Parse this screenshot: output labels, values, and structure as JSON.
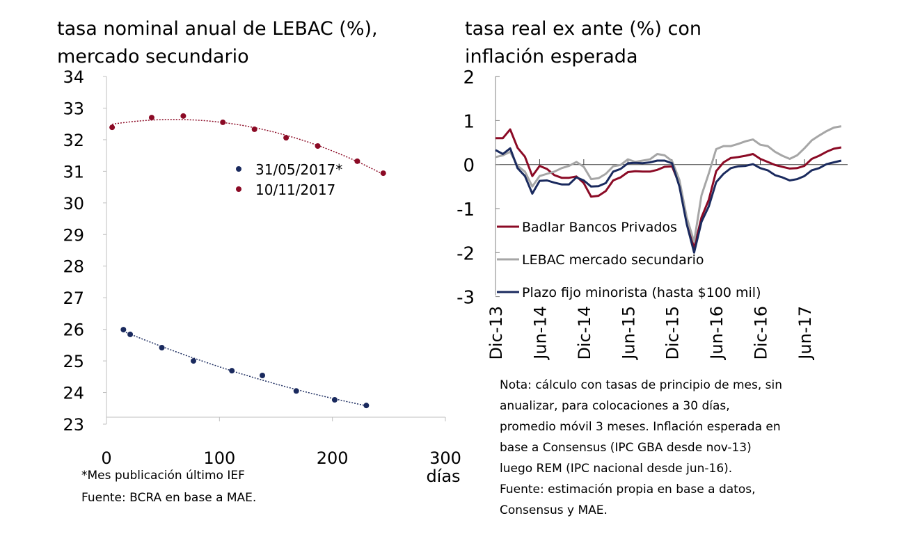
{
  "chart_data": [
    {
      "type": "scatter",
      "title": "tasa nominal anual de LEBAC (%), mercado secundario",
      "title_lines": [
        "tasa nominal anual de LEBAC (%),",
        "mercado secundario"
      ],
      "xlabel": "días",
      "ylabel": "",
      "xlim": [
        0,
        300
      ],
      "ylim": [
        23,
        34
      ],
      "xticks": [
        "0",
        "100",
        "200",
        "300"
      ],
      "yticks": [
        "23",
        "24",
        "25",
        "26",
        "27",
        "28",
        "29",
        "30",
        "31",
        "32",
        "33",
        "34"
      ],
      "grid": false,
      "legend_position": "center-right",
      "trendline": "dotted polynomial",
      "series": [
        {
          "name": "31/05/2017*",
          "color": "#1a2a5e",
          "x": [
            15,
            21,
            49,
            77,
            111,
            138,
            168,
            202,
            230
          ],
          "y": [
            25.99,
            25.84,
            25.42,
            25.0,
            24.69,
            24.54,
            24.05,
            23.77,
            23.59
          ]
        },
        {
          "name": "10/11/2017",
          "color": "#8b0a25",
          "x": [
            5,
            40,
            68,
            103,
            131,
            159,
            187,
            222,
            245
          ],
          "y": [
            32.39,
            32.7,
            32.75,
            32.55,
            32.33,
            32.06,
            31.8,
            31.32,
            30.94
          ]
        }
      ],
      "footnotes": [
        "*Mes publicación último IEF",
        "Fuente: BCRA en base a MAE."
      ]
    },
    {
      "type": "line",
      "title": "tasa real ex ante (%) con inflación esperada",
      "title_lines": [
        "tasa real ex ante (%) con",
        "inflación esperada"
      ],
      "xlabel": "",
      "ylabel": "",
      "ylim": [
        -3,
        2
      ],
      "yticks": [
        "2",
        "1",
        "0",
        "-1",
        "-2",
        "-3"
      ],
      "xticks": [
        "Dic-13",
        "Jun-14",
        "Dic-14",
        "Jun-15",
        "Dic-15",
        "Jun-16",
        "Dic-16",
        "Jun-17"
      ],
      "x_period": "monthly, Dec-2013 to Nov-2017",
      "grid": false,
      "legend_position": "bottom-left",
      "series": [
        {
          "name": "Badlar Bancos Privados",
          "color": "#8b0a25",
          "values": [
            0.6,
            0.6,
            0.8,
            0.38,
            0.18,
            -0.26,
            -0.03,
            -0.1,
            -0.24,
            -0.3,
            -0.3,
            -0.27,
            -0.42,
            -0.73,
            -0.71,
            -0.6,
            -0.36,
            -0.29,
            -0.17,
            -0.15,
            -0.16,
            -0.16,
            -0.12,
            -0.05,
            -0.04,
            -0.45,
            -1.3,
            -1.9,
            -1.2,
            -0.8,
            -0.15,
            0.05,
            0.15,
            0.17,
            0.2,
            0.24,
            0.13,
            0.06,
            -0.01,
            -0.05,
            -0.09,
            -0.08,
            -0.03,
            0.13,
            0.2,
            0.29,
            0.36,
            0.39
          ]
        },
        {
          "name": "LEBAC mercado secundario",
          "color": "#a6a6a6",
          "values": [
            0.17,
            0.21,
            0.29,
            -0.03,
            -0.16,
            -0.5,
            -0.26,
            -0.21,
            -0.16,
            -0.08,
            -0.03,
            0.06,
            -0.05,
            -0.33,
            -0.31,
            -0.21,
            -0.04,
            -0.01,
            0.12,
            0.06,
            0.09,
            0.12,
            0.24,
            0.21,
            0.08,
            -0.35,
            -1.2,
            -1.75,
            -0.7,
            -0.2,
            0.35,
            0.42,
            0.42,
            0.47,
            0.53,
            0.57,
            0.45,
            0.42,
            0.29,
            0.2,
            0.13,
            0.21,
            0.37,
            0.55,
            0.66,
            0.76,
            0.84,
            0.87
          ]
        },
        {
          "name": "Plazo fijo minorista (hasta $100 mil)",
          "color": "#1a2a5e",
          "values": [
            0.33,
            0.24,
            0.37,
            -0.08,
            -0.26,
            -0.66,
            -0.37,
            -0.36,
            -0.41,
            -0.45,
            -0.45,
            -0.29,
            -0.36,
            -0.5,
            -0.49,
            -0.42,
            -0.16,
            -0.1,
            0.03,
            0.04,
            0.03,
            0.05,
            0.09,
            0.09,
            0.03,
            -0.5,
            -1.35,
            -2.0,
            -1.3,
            -0.95,
            -0.4,
            -0.21,
            -0.08,
            -0.04,
            -0.03,
            0.01,
            -0.08,
            -0.13,
            -0.24,
            -0.29,
            -0.36,
            -0.33,
            -0.26,
            -0.13,
            -0.08,
            0.01,
            0.05,
            0.09
          ]
        }
      ],
      "footnotes": [
        "Nota: cálculo con tasas de principio de mes, sin",
        "anualizar, para colocaciones a 30 días,",
        "promedio móvil 3 meses. Inflación esperada en",
        "base a Consensus (IPC GBA desde nov-13)",
        "luego REM (IPC nacional desde jun-16).",
        "Fuente: estimación propia en base a datos,",
        "Consensus y MAE."
      ]
    }
  ]
}
